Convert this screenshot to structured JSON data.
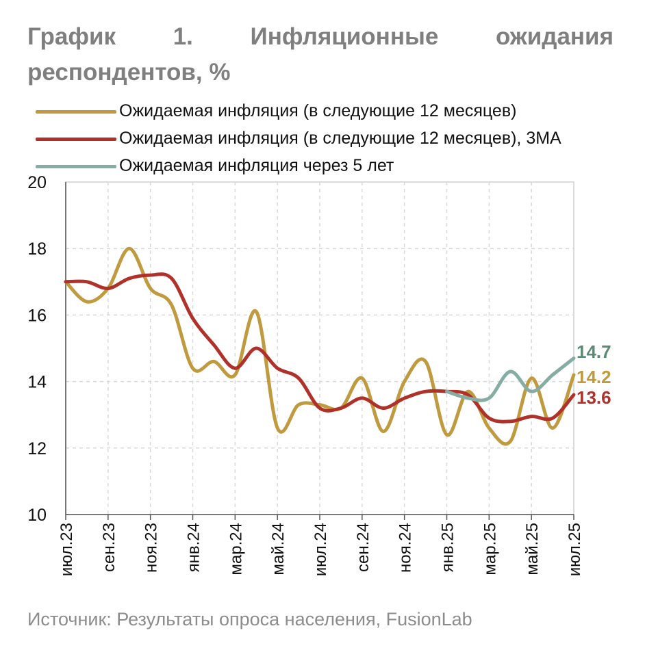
{
  "chart_data": {
    "type": "line",
    "title": "График 1. Инфляционные ожидания респондентов, %",
    "source": "Источник: Результаты опроса населения, FusionLab",
    "x": [
      "июл.23",
      "авг.23",
      "сен.23",
      "окт.23",
      "ноя.23",
      "дек.23",
      "янв.24",
      "фев.24",
      "мар.24",
      "апр.24",
      "май.24",
      "июн.24",
      "июл.24",
      "авг.24",
      "сен.24",
      "окт.24",
      "ноя.24",
      "дек.24",
      "янв.25",
      "фев.25",
      "мар.25",
      "апр.25",
      "май.25",
      "июн.25",
      "июл.25"
    ],
    "tick_labels": [
      "июл.23",
      "",
      "сен.23",
      "",
      "ноя.23",
      "",
      "янв.24",
      "",
      "мар.24",
      "",
      "май.24",
      "",
      "июл.24",
      "",
      "сен.24",
      "",
      "ноя.24",
      "",
      "янв.25",
      "",
      "мар.25",
      "",
      "май.25",
      "",
      "июл.25"
    ],
    "ylim": [
      10,
      20
    ],
    "yticks": [
      10,
      12,
      14,
      16,
      18,
      20
    ],
    "grid": true,
    "legend_position": "top-left",
    "series": [
      {
        "name": "Ожидаемая инфляция (в следующие 12 месяцев)",
        "color": "#c09a3e",
        "values": [
          17.0,
          16.4,
          16.8,
          18.0,
          16.8,
          16.3,
          14.4,
          14.6,
          14.2,
          16.1,
          12.6,
          13.3,
          13.3,
          13.2,
          14.1,
          12.5,
          14.0,
          14.6,
          12.4,
          13.7,
          12.6,
          12.2,
          14.1,
          12.6,
          14.2
        ]
      },
      {
        "name": "Ожидаемая инфляция (в следующие 12 месяцев), 3МА",
        "color": "#b0302a",
        "values": [
          17.0,
          17.0,
          16.8,
          17.1,
          17.2,
          17.1,
          15.9,
          15.1,
          14.4,
          15.0,
          14.4,
          14.1,
          13.2,
          13.2,
          13.5,
          13.2,
          13.5,
          13.7,
          13.7,
          13.6,
          12.9,
          12.8,
          12.95,
          12.9,
          13.6
        ]
      },
      {
        "name": "Ожидаемая инфляция через 5 лет",
        "color": "#86ada4",
        "values": [
          null,
          null,
          null,
          null,
          null,
          null,
          null,
          null,
          null,
          null,
          null,
          null,
          null,
          null,
          null,
          null,
          null,
          null,
          13.7,
          13.5,
          13.5,
          14.3,
          13.7,
          14.2,
          14.7
        ]
      }
    ],
    "end_labels": [
      {
        "text": "14.7",
        "color": "#5a8b74"
      },
      {
        "text": "14.2",
        "color": "#c09a3e"
      },
      {
        "text": "13.6",
        "color": "#b0302a"
      }
    ]
  }
}
